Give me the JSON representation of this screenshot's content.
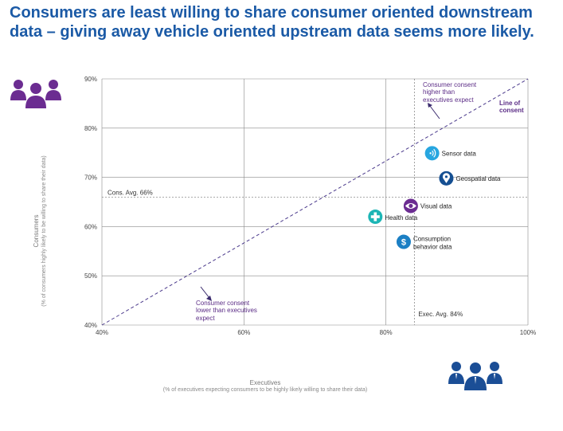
{
  "header": {
    "title_line1": "Consumers are least willing to share consumer oriented downstream",
    "title_line2": "data – giving away vehicle oriented upstream data seems more likely."
  },
  "colors": {
    "title": "#1b5aa6",
    "consumer_icon": "#6b2c91",
    "executive_icon": "#1b4e96",
    "diagonal": "#4b3a8c",
    "annotation": "#5b2c86",
    "grid": "#6d6d6d"
  },
  "icons": {
    "consumers": "group-of-people-icon",
    "executives": "group-of-businesspeople-icon"
  },
  "chart_data": {
    "type": "scatter",
    "xlabel": "Executives",
    "xlabel_sub": "(% of executives expecting consumers to be highly likely willing to share their data)",
    "ylabel": "Consumers",
    "ylabel_sub": "(% of consumers highly likely to be willing to share their data)",
    "xlim": [
      40,
      100
    ],
    "ylim": [
      40,
      90
    ],
    "x_ticks": [
      "40%",
      "60%",
      "80%",
      "100%"
    ],
    "y_ticks": [
      "40%",
      "50%",
      "60%",
      "70%",
      "80%",
      "90%"
    ],
    "grid": true,
    "points": [
      {
        "label": "Sensor data",
        "x": 86.5,
        "y": 74.9,
        "color": "#27a6e0",
        "icon": "wifi-icon"
      },
      {
        "label": "Geospatial data",
        "x": 88.5,
        "y": 69.8,
        "color": "#154f92",
        "icon": "map-pin-icon"
      },
      {
        "label": "Visual data",
        "x": 83.5,
        "y": 64.2,
        "color": "#6b2c91",
        "icon": "eye-icon"
      },
      {
        "label": "Health data",
        "x": 78.5,
        "y": 62.0,
        "color": "#1cb5b5",
        "icon": "health-cross-icon"
      },
      {
        "label": "Consumption behavior data",
        "x": 82.5,
        "y": 56.9,
        "color": "#1b7fc4",
        "icon": "dollar-icon"
      }
    ],
    "reference_lines": [
      {
        "axis": "y",
        "value": 66,
        "label": "Cons. Avg. 66%"
      },
      {
        "axis": "x",
        "value": 84,
        "label": "Exec. Avg. 84%"
      }
    ],
    "diagonal": {
      "label": "Line of consent"
    },
    "annotations": {
      "upper": "Consumer consent higher than executives expect",
      "lower": "Consumer consent lower than executives expect"
    }
  }
}
